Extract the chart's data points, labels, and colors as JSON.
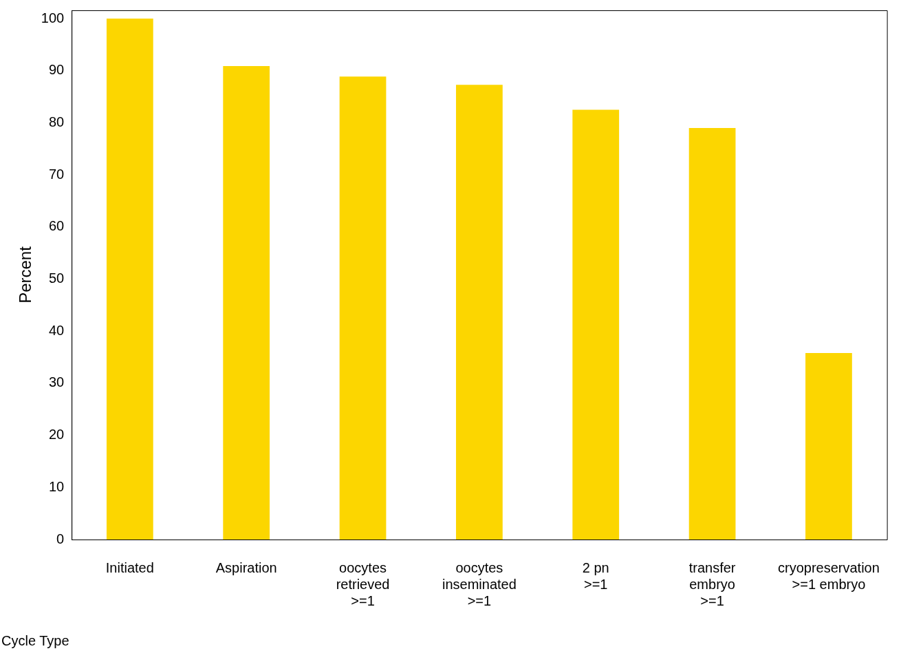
{
  "chart_data": {
    "type": "bar",
    "xlabel": "Cycle Type",
    "ylabel": "Percent",
    "categories": [
      "Initiated",
      "Aspiration",
      "oocytes\nretrieved\n>=1",
      "oocytes\ninseminated\n>=1",
      "2 pn\n>=1",
      "transfer\nembryo\n>=1",
      "cryopreservation\n>=1 embryo"
    ],
    "values": [
      100,
      90.9,
      88.9,
      87.3,
      82.5,
      79.0,
      35.8
    ],
    "color": "#fcd600",
    "ylim": [
      0,
      101.6
    ],
    "yticks": [
      0,
      10,
      20,
      30,
      40,
      50,
      60,
      70,
      80,
      90,
      100
    ],
    "grid": false,
    "legend": false
  }
}
